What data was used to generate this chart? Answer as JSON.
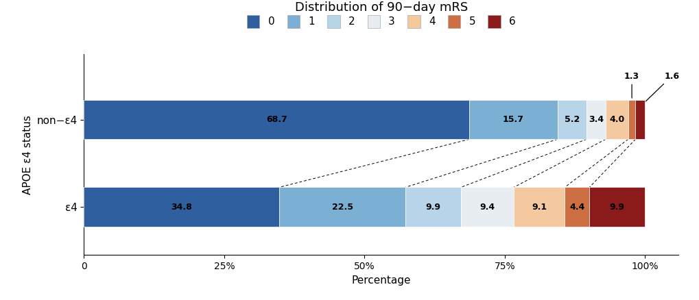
{
  "title": "Distribution of 90−day mRS",
  "xlabel": "Percentage",
  "ylabel": "APOE ε4 status",
  "categories": [
    "non−ε4",
    "ε4"
  ],
  "segments": {
    "non−ε4": [
      68.7,
      15.7,
      5.2,
      3.4,
      4.0,
      1.3,
      1.6
    ],
    "ε4": [
      34.8,
      22.5,
      9.9,
      9.4,
      9.1,
      4.4,
      9.9
    ]
  },
  "colors": [
    "#2f5f9e",
    "#7bafd4",
    "#b8d4e8",
    "#e8edf2",
    "#f5c9a0",
    "#cc7043",
    "#8b1a1a"
  ],
  "mrs_labels": [
    "0",
    "1",
    "2",
    "3",
    "4",
    "5",
    "6"
  ],
  "bar_height": 0.45,
  "figsize": [
    10.2,
    4.38
  ],
  "dpi": 100,
  "xlim": [
    0,
    106
  ],
  "xticks": [
    0,
    25,
    50,
    75,
    100
  ],
  "xtick_labels": [
    "0",
    "25%",
    "50%",
    "75%",
    "100%"
  ]
}
